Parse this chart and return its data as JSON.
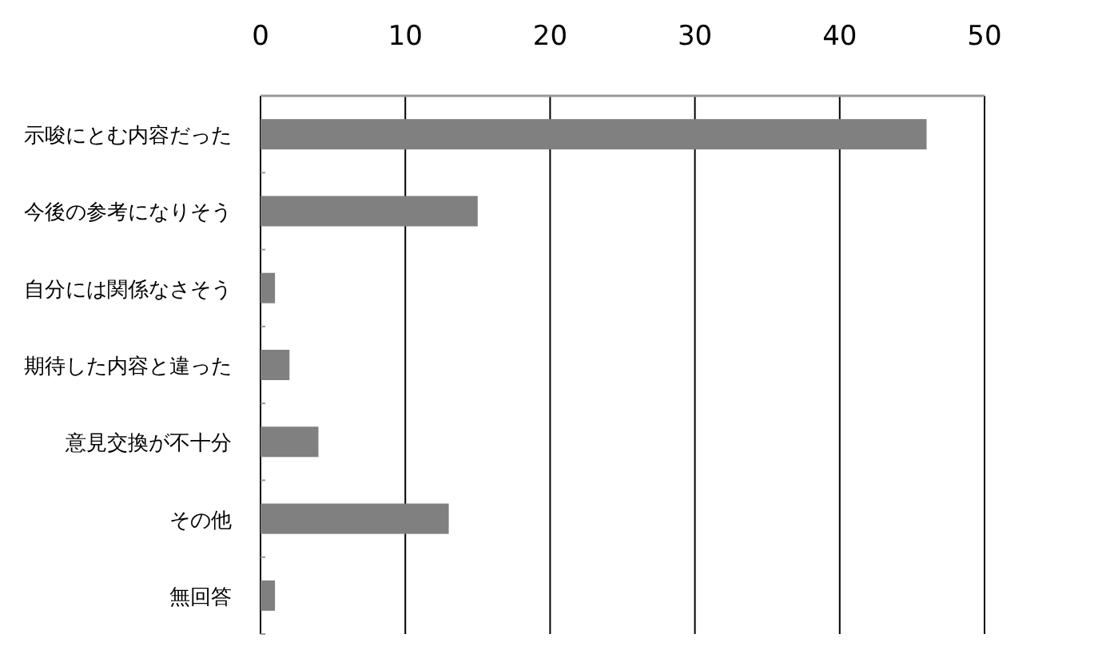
{
  "chart_data": {
    "type": "bar",
    "orientation": "horizontal",
    "categories": [
      "示唆にとむ内容だった",
      "今後の参考になりそう",
      "自分には関係なさそう",
      "期待した内容と違った",
      "意見交換が不十分",
      "その他",
      "無回答"
    ],
    "values": [
      46,
      15,
      1,
      2,
      4,
      13,
      1
    ],
    "color": "#808080",
    "xlim": [
      0,
      50
    ],
    "xticks": [
      0,
      10,
      20,
      30,
      40,
      50
    ],
    "grid": "x"
  }
}
